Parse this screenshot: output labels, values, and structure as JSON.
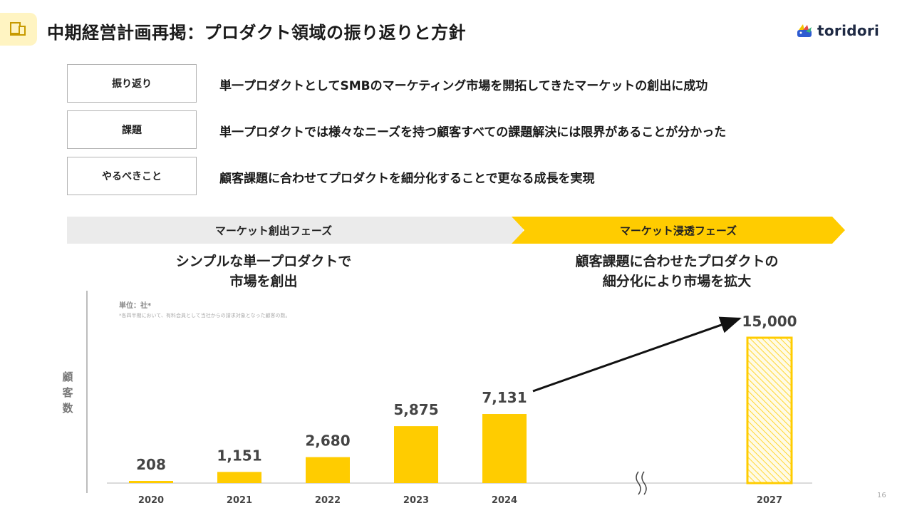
{
  "header": {
    "title": "中期経営計画再掲：プロダクト領域の振り返りと方針",
    "icon": "devices-icon",
    "logo_text": "toridori"
  },
  "rows": [
    {
      "label": "振り返り",
      "text": "単一プロダクトとしてSMBのマーケティング市場を開拓してきたマーケットの創出に成功"
    },
    {
      "label": "課題",
      "text": "単一プロダクトでは様々なニーズを持つ顧客すべての課題解決には限界があることが分かった"
    },
    {
      "label": "やるべきこと",
      "text": "顧客課題に合わせてプロダクトを細分化することで更なる成長を実現"
    }
  ],
  "phases": {
    "creation": {
      "label": "マーケット創出フェーズ",
      "sub_line1": "シンプルな単一プロダクトで",
      "sub_line2": "市場を創出",
      "color": "#ebebeb"
    },
    "penetration": {
      "label": "マーケット浸透フェーズ",
      "sub_line1": "顧客課題に合わせたプロダクトの",
      "sub_line2": "細分化により市場を拡大",
      "color": "#ffcc00"
    }
  },
  "chart_notes": {
    "unit": "単位：社*",
    "footnote": "*各四半期において、有料会員として当社からの請求対象となった顧客の数。",
    "y_title": "顧客数"
  },
  "chart_data": {
    "type": "bar",
    "categories": [
      "2020",
      "2021",
      "2022",
      "2023",
      "2024",
      "2027"
    ],
    "values": [
      208,
      1151,
      2680,
      5875,
      7131,
      15000
    ],
    "value_labels": [
      "208",
      "1,151",
      "2,680",
      "5,875",
      "7,131",
      "15,000"
    ],
    "ylabel": "顧客数",
    "bar_color": "#ffcc00",
    "projected_categories": [
      "2027"
    ],
    "axis_break_between": [
      "2024",
      "2027"
    ],
    "trend_arrow": {
      "from": "2024",
      "to": "2027"
    },
    "ylim": [
      0,
      15000
    ]
  },
  "page_number": "16"
}
